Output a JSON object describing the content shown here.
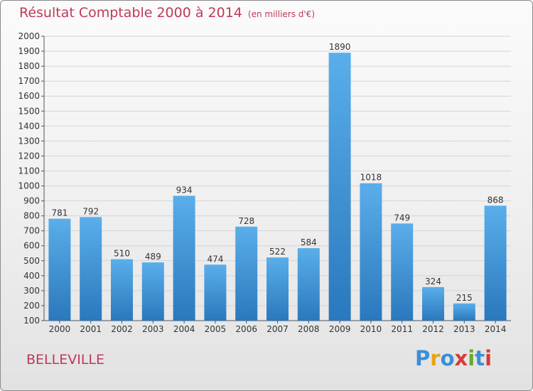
{
  "header": {
    "title": "Résultat Comptable 2000 à 2014",
    "subtitle": "(en milliers d'€)"
  },
  "footer": {
    "town": "BELLEVILLE",
    "logo": "Proxiti"
  },
  "colors": {
    "accent": "#c0395a",
    "bar_top": "#5aaeea",
    "bar_bottom": "#2a78bd"
  },
  "chart_data": {
    "type": "bar",
    "title": "Résultat Comptable 2000 à 2014",
    "subtitle": "(en milliers d'€)",
    "xlabel": "",
    "ylabel": "",
    "ylim": [
      100,
      2000
    ],
    "yticks": [
      100,
      200,
      300,
      400,
      500,
      600,
      700,
      800,
      900,
      1000,
      1100,
      1200,
      1300,
      1400,
      1500,
      1600,
      1700,
      1800,
      1900,
      2000
    ],
    "grid": true,
    "categories": [
      "2000",
      "2001",
      "2002",
      "2003",
      "2004",
      "2005",
      "2006",
      "2007",
      "2008",
      "2009",
      "2010",
      "2011",
      "2012",
      "2013",
      "2014"
    ],
    "values": [
      781,
      792,
      510,
      489,
      934,
      474,
      728,
      522,
      584,
      1890,
      1018,
      749,
      324,
      215,
      868
    ]
  }
}
